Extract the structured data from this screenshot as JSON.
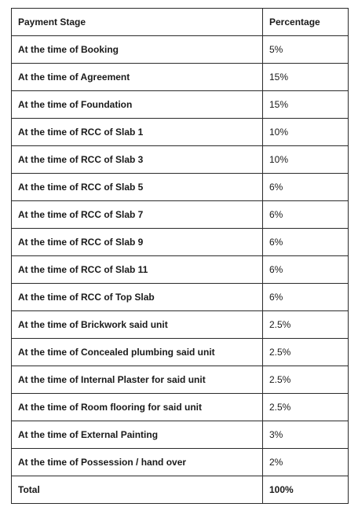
{
  "table": {
    "headers": [
      "Payment Stage",
      "Percentage"
    ],
    "rows": [
      {
        "stage": "At the time of Booking",
        "percentage": "5%"
      },
      {
        "stage": "At the time of Agreement",
        "percentage": "15%"
      },
      {
        "stage": "At the time of Foundation",
        "percentage": "15%"
      },
      {
        "stage": "At the time of RCC of Slab 1",
        "percentage": "10%"
      },
      {
        "stage": "At the time of RCC of Slab 3",
        "percentage": "10%"
      },
      {
        "stage": "At the time of RCC of Slab 5",
        "percentage": "6%"
      },
      {
        "stage": "At the time of RCC of Slab 7",
        "percentage": "6%"
      },
      {
        "stage": "At the time of RCC of Slab 9",
        "percentage": "6%"
      },
      {
        "stage": "At the time of RCC of Slab 11",
        "percentage": "6%"
      },
      {
        "stage": "At the time of RCC of Top Slab",
        "percentage": "6%"
      },
      {
        "stage": "At the time of Brickwork said unit",
        "percentage": "2.5%"
      },
      {
        "stage": "At the time of Concealed plumbing said unit",
        "percentage": "2.5%"
      },
      {
        "stage": "At the time of Internal Plaster for said unit",
        "percentage": "2.5%"
      },
      {
        "stage": "At the time of Room flooring for said unit",
        "percentage": "2.5%"
      },
      {
        "stage": "At the time of External Painting",
        "percentage": "3%"
      },
      {
        "stage": "At the time of Possession / hand over",
        "percentage": "2%"
      }
    ],
    "total": {
      "label": "Total",
      "percentage": "100%"
    }
  }
}
